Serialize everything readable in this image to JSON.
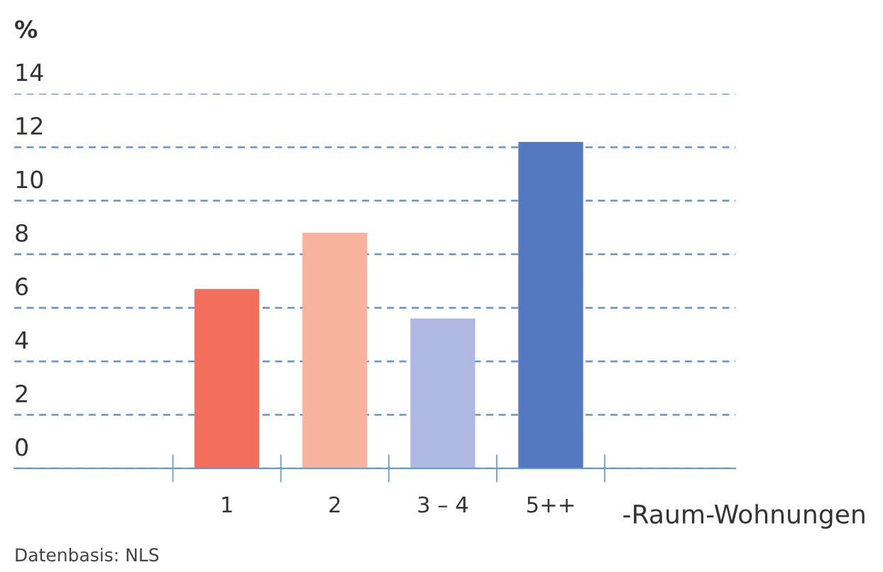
{
  "chart_data": {
    "type": "bar",
    "ylabel": "%",
    "xlabel": "-Raum-Wohnungen",
    "categories": [
      "1",
      "2",
      "3 – 4",
      "5++"
    ],
    "values": [
      6.7,
      8.8,
      5.6,
      12.2
    ],
    "colors": [
      "#f26f5c",
      "#f7b39d",
      "#adb9e0",
      "#5479c0"
    ],
    "ylim": [
      0,
      14
    ],
    "yticks": [
      0,
      2,
      4,
      6,
      8,
      10,
      12,
      14
    ],
    "grid": "y",
    "annotations": [
      "Datenbasis: NLS"
    ]
  }
}
